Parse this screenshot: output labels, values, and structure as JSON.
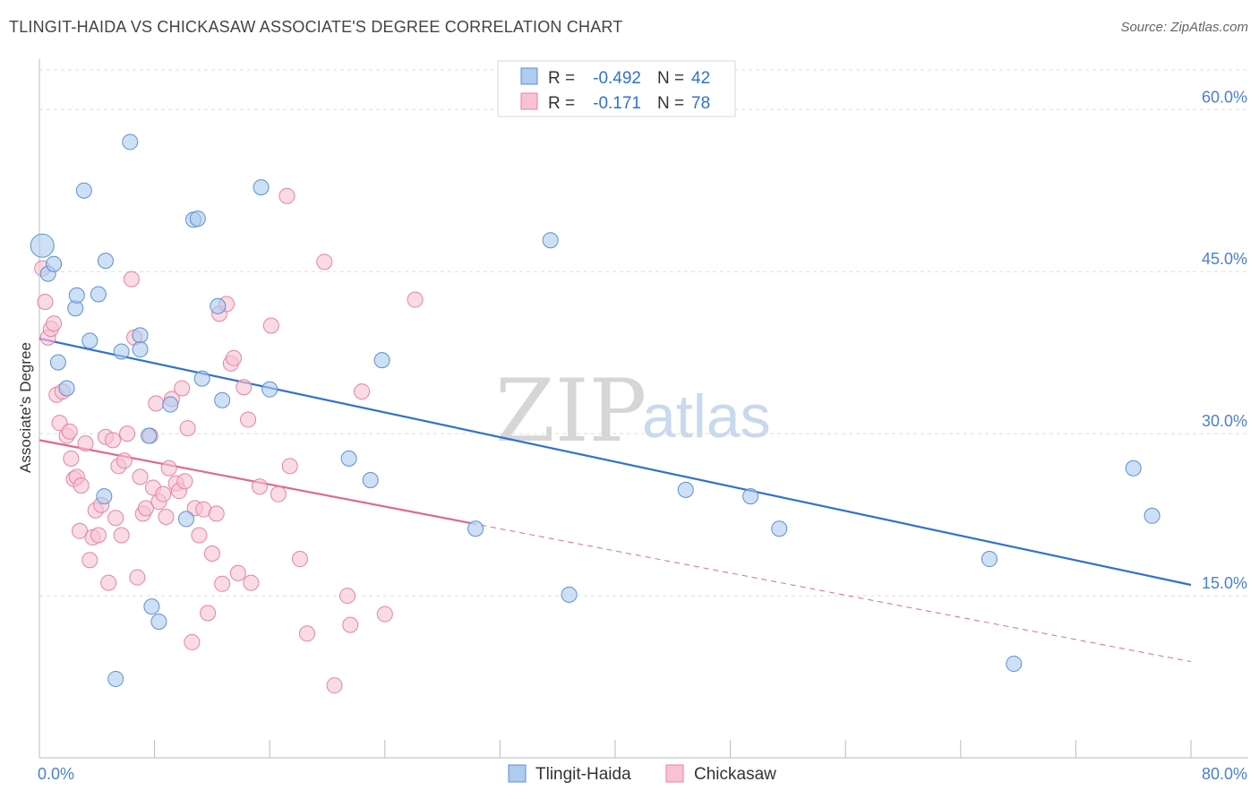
{
  "header": {
    "title": "TLINGIT-HAIDA VS CHICKASAW ASSOCIATE'S DEGREE CORRELATION CHART",
    "source": "Source: ZipAtlas.com"
  },
  "watermark": {
    "zip": "ZIP",
    "atlas": "atlas"
  },
  "chart_data": {
    "type": "scatter",
    "ylabel": "Associate's Degree",
    "xlim": [
      0,
      80
    ],
    "ylim": [
      0,
      64
    ],
    "y_ticks": [
      15,
      30,
      45,
      60
    ],
    "y_tick_labels": [
      "15.0%",
      "30.0%",
      "45.0%",
      "60.0%"
    ],
    "x_tick_labels": [
      "0.0%",
      "80.0%"
    ],
    "grid": true,
    "legend_position": "top-center",
    "stats": [
      {
        "r_label": "R =",
        "r": "-0.492",
        "n_label": "N =",
        "n": "42"
      },
      {
        "r_label": "R =",
        "r": "-0.171",
        "n_label": "N =",
        "n": "78"
      }
    ],
    "series": [
      {
        "name": "Tlingit-Haida",
        "color": "#aecbf0",
        "stroke": "#5b8fd6",
        "line_color": "#2f72d0",
        "trend": {
          "x0": 0,
          "y0": 38.8,
          "x1": 80,
          "y1": 16.0,
          "dashed_from": null
        },
        "points": [
          [
            0.2,
            47.4
          ],
          [
            0.6,
            44.8
          ],
          [
            1.0,
            45.7
          ],
          [
            1.3,
            36.6
          ],
          [
            1.9,
            34.2
          ],
          [
            2.5,
            41.6
          ],
          [
            2.6,
            42.8
          ],
          [
            3.1,
            52.5
          ],
          [
            3.5,
            38.6
          ],
          [
            4.1,
            42.9
          ],
          [
            4.6,
            46.0
          ],
          [
            4.5,
            24.2
          ],
          [
            5.3,
            7.3
          ],
          [
            5.7,
            37.6
          ],
          [
            6.3,
            57.0
          ],
          [
            7.0,
            39.1
          ],
          [
            7.0,
            37.8
          ],
          [
            7.6,
            29.8
          ],
          [
            7.8,
            14.0
          ],
          [
            8.3,
            12.6
          ],
          [
            9.1,
            32.7
          ],
          [
            10.2,
            22.1
          ],
          [
            10.7,
            49.8
          ],
          [
            11.0,
            49.9
          ],
          [
            11.3,
            35.1
          ],
          [
            12.4,
            41.8
          ],
          [
            12.7,
            33.1
          ],
          [
            15.4,
            52.8
          ],
          [
            16.0,
            34.1
          ],
          [
            21.5,
            27.7
          ],
          [
            23.0,
            25.7
          ],
          [
            23.8,
            36.8
          ],
          [
            30.3,
            21.2
          ],
          [
            35.5,
            47.9
          ],
          [
            36.8,
            15.1
          ],
          [
            44.9,
            24.8
          ],
          [
            49.4,
            24.2
          ],
          [
            51.4,
            21.2
          ],
          [
            66.0,
            18.4
          ],
          [
            67.7,
            8.7
          ],
          [
            76.0,
            26.8
          ],
          [
            77.3,
            22.4
          ]
        ]
      },
      {
        "name": "Chickasaw",
        "color": "#f7c3d3",
        "stroke": "#e8829f",
        "line_color": "#e06890",
        "trend": {
          "x0": 0,
          "y0": 29.4,
          "x1": 80,
          "y1": 8.9,
          "dashed_from": 30.0
        },
        "points": [
          [
            0.2,
            45.3
          ],
          [
            0.4,
            42.2
          ],
          [
            0.6,
            38.9
          ],
          [
            0.8,
            39.7
          ],
          [
            1.0,
            40.2
          ],
          [
            1.2,
            33.6
          ],
          [
            1.4,
            31.0
          ],
          [
            1.6,
            33.9
          ],
          [
            1.9,
            29.8
          ],
          [
            2.1,
            30.2
          ],
          [
            2.2,
            27.7
          ],
          [
            2.4,
            25.8
          ],
          [
            2.6,
            26.0
          ],
          [
            2.8,
            21.0
          ],
          [
            2.9,
            25.2
          ],
          [
            3.2,
            29.1
          ],
          [
            3.5,
            18.3
          ],
          [
            3.7,
            20.4
          ],
          [
            3.9,
            22.9
          ],
          [
            4.1,
            20.6
          ],
          [
            4.3,
            23.4
          ],
          [
            4.6,
            29.7
          ],
          [
            4.8,
            16.2
          ],
          [
            5.1,
            29.4
          ],
          [
            5.3,
            22.2
          ],
          [
            5.5,
            27.0
          ],
          [
            5.7,
            20.6
          ],
          [
            5.9,
            27.5
          ],
          [
            6.1,
            30.0
          ],
          [
            6.4,
            44.3
          ],
          [
            6.6,
            38.9
          ],
          [
            6.8,
            16.7
          ],
          [
            7.0,
            26.0
          ],
          [
            7.2,
            22.6
          ],
          [
            7.4,
            23.1
          ],
          [
            7.7,
            29.8
          ],
          [
            7.9,
            25.0
          ],
          [
            8.1,
            32.8
          ],
          [
            8.3,
            23.7
          ],
          [
            8.6,
            24.4
          ],
          [
            8.8,
            22.3
          ],
          [
            9.0,
            26.8
          ],
          [
            9.2,
            33.2
          ],
          [
            9.5,
            25.4
          ],
          [
            9.7,
            24.7
          ],
          [
            9.9,
            34.2
          ],
          [
            10.1,
            25.6
          ],
          [
            10.3,
            30.5
          ],
          [
            10.6,
            10.7
          ],
          [
            10.8,
            23.1
          ],
          [
            11.1,
            20.6
          ],
          [
            11.4,
            23.0
          ],
          [
            11.7,
            13.4
          ],
          [
            12.0,
            18.9
          ],
          [
            12.3,
            22.6
          ],
          [
            12.5,
            41.1
          ],
          [
            12.7,
            16.1
          ],
          [
            13.0,
            42.0
          ],
          [
            13.3,
            36.5
          ],
          [
            13.5,
            37.0
          ],
          [
            13.8,
            17.1
          ],
          [
            14.2,
            34.3
          ],
          [
            14.5,
            31.3
          ],
          [
            14.7,
            16.2
          ],
          [
            15.3,
            25.1
          ],
          [
            16.1,
            40.0
          ],
          [
            16.6,
            24.4
          ],
          [
            17.2,
            52.0
          ],
          [
            17.4,
            27.0
          ],
          [
            18.1,
            18.4
          ],
          [
            18.6,
            11.5
          ],
          [
            19.8,
            45.9
          ],
          [
            20.5,
            6.7
          ],
          [
            21.4,
            15.0
          ],
          [
            21.6,
            12.3
          ],
          [
            22.4,
            33.9
          ],
          [
            24.0,
            13.3
          ],
          [
            26.1,
            42.4
          ]
        ]
      }
    ]
  }
}
